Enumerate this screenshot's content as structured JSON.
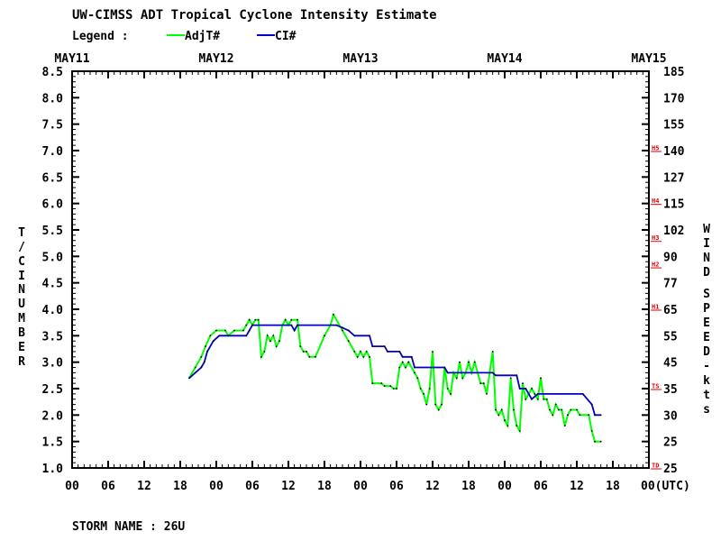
{
  "chart_data": {
    "type": "line",
    "title": "UW-CIMSS ADT Tropical Cyclone Intensity Estimate",
    "legend": {
      "label": "Legend :",
      "entries": [
        {
          "name": "AdjT#",
          "color": "#00ff00"
        },
        {
          "name": "CI#",
          "color": "#0000cc"
        }
      ],
      "placement": "top-left"
    },
    "footer": "STORM NAME : 26U",
    "left_axis": {
      "label_lines": [
        "T/CI",
        "NUMBER"
      ],
      "ticks": [
        "1.0",
        "1.5",
        "2.0",
        "2.5",
        "3.0",
        "3.5",
        "4.0",
        "4.5",
        "5.0",
        "5.5",
        "6.0",
        "6.5",
        "7.0",
        "7.5",
        "8.0",
        "8.5"
      ],
      "range": [
        1.0,
        8.5
      ]
    },
    "right_axis": {
      "label_lines": [
        "WIND",
        "SPEED-kts"
      ],
      "ticks": [
        {
          "t": 1.0,
          "label": "25"
        },
        {
          "t": 1.5,
          "label": "25"
        },
        {
          "t": 2.0,
          "label": "30"
        },
        {
          "t": 2.5,
          "label": "35"
        },
        {
          "t": 3.0,
          "label": "45"
        },
        {
          "t": 3.5,
          "label": "55"
        },
        {
          "t": 4.0,
          "label": "65"
        },
        {
          "t": 4.5,
          "label": "77"
        },
        {
          "t": 5.0,
          "label": "90"
        },
        {
          "t": 5.5,
          "label": "102"
        },
        {
          "t": 6.0,
          "label": "115"
        },
        {
          "t": 6.5,
          "label": "127"
        },
        {
          "t": 7.0,
          "label": "140"
        },
        {
          "t": 7.5,
          "label": "155"
        },
        {
          "t": 8.0,
          "label": "170"
        },
        {
          "t": 8.5,
          "label": "185"
        }
      ],
      "categories": [
        {
          "t": 1.0,
          "label": "TD"
        },
        {
          "t": 2.5,
          "label": "TS"
        },
        {
          "t": 4.0,
          "label": "H1"
        },
        {
          "t": 4.8,
          "label": "H2"
        },
        {
          "t": 5.3,
          "label": "H3"
        },
        {
          "t": 6.0,
          "label": "H4"
        },
        {
          "t": 7.0,
          "label": "H5"
        }
      ]
    },
    "x_axis": {
      "range_hours": [
        0,
        96
      ],
      "date_labels": [
        {
          "h": 0,
          "label": "MAY11"
        },
        {
          "h": 24,
          "label": "MAY12"
        },
        {
          "h": 48,
          "label": "MAY13"
        },
        {
          "h": 72,
          "label": "MAY14"
        },
        {
          "h": 96,
          "label": "MAY15"
        }
      ],
      "hour_labels": [
        {
          "h": 0,
          "label": "00"
        },
        {
          "h": 6,
          "label": "06"
        },
        {
          "h": 12,
          "label": "12"
        },
        {
          "h": 18,
          "label": "18"
        },
        {
          "h": 24,
          "label": "00"
        },
        {
          "h": 30,
          "label": "06"
        },
        {
          "h": 36,
          "label": "12"
        },
        {
          "h": 42,
          "label": "18"
        },
        {
          "h": 48,
          "label": "00"
        },
        {
          "h": 54,
          "label": "06"
        },
        {
          "h": 60,
          "label": "12"
        },
        {
          "h": 66,
          "label": "18"
        },
        {
          "h": 72,
          "label": "00"
        },
        {
          "h": 78,
          "label": "06"
        },
        {
          "h": 84,
          "label": "12"
        },
        {
          "h": 90,
          "label": "18"
        },
        {
          "h": 96,
          "label": "00(UTC)"
        }
      ]
    },
    "series": [
      {
        "name": "AdjT#",
        "color": "#00ff00",
        "points": [
          [
            19.5,
            2.7
          ],
          [
            20.5,
            2.9
          ],
          [
            21.5,
            3.1
          ],
          [
            22.2,
            3.3
          ],
          [
            23,
            3.5
          ],
          [
            24,
            3.6
          ],
          [
            25.5,
            3.6
          ],
          [
            26,
            3.5
          ],
          [
            27,
            3.6
          ],
          [
            28.5,
            3.6
          ],
          [
            29,
            3.7
          ],
          [
            29.5,
            3.8
          ],
          [
            30,
            3.7
          ],
          [
            30.5,
            3.8
          ],
          [
            31,
            3.8
          ],
          [
            31.5,
            3.1
          ],
          [
            32,
            3.2
          ],
          [
            32.5,
            3.5
          ],
          [
            33,
            3.4
          ],
          [
            33.5,
            3.5
          ],
          [
            34,
            3.3
          ],
          [
            34.5,
            3.4
          ],
          [
            35,
            3.7
          ],
          [
            35.5,
            3.8
          ],
          [
            36,
            3.7
          ],
          [
            36.5,
            3.8
          ],
          [
            37.5,
            3.8
          ],
          [
            38,
            3.3
          ],
          [
            38.5,
            3.2
          ],
          [
            39,
            3.2
          ],
          [
            39.5,
            3.1
          ],
          [
            40.5,
            3.1
          ],
          [
            42,
            3.5
          ],
          [
            43,
            3.7
          ],
          [
            43.5,
            3.9
          ],
          [
            45,
            3.6
          ],
          [
            46,
            3.4
          ],
          [
            47,
            3.2
          ],
          [
            47.5,
            3.1
          ],
          [
            48,
            3.2
          ],
          [
            48.5,
            3.1
          ],
          [
            49,
            3.2
          ],
          [
            49.5,
            3.1
          ],
          [
            50,
            2.6
          ],
          [
            51.5,
            2.6
          ],
          [
            52,
            2.55
          ],
          [
            53,
            2.55
          ],
          [
            53.5,
            2.5
          ],
          [
            54,
            2.5
          ],
          [
            54.5,
            2.9
          ],
          [
            55,
            3.0
          ],
          [
            55.5,
            2.9
          ],
          [
            56,
            3.0
          ],
          [
            57,
            2.8
          ],
          [
            57.5,
            2.7
          ],
          [
            58,
            2.5
          ],
          [
            58.5,
            2.4
          ],
          [
            59,
            2.2
          ],
          [
            59.5,
            2.5
          ],
          [
            60,
            3.2
          ],
          [
            60.5,
            2.2
          ],
          [
            61,
            2.1
          ],
          [
            61.5,
            2.2
          ],
          [
            62,
            2.9
          ],
          [
            62.5,
            2.5
          ],
          [
            63,
            2.4
          ],
          [
            63.5,
            2.8
          ],
          [
            64,
            2.7
          ],
          [
            64.5,
            3.0
          ],
          [
            65,
            2.7
          ],
          [
            65.5,
            2.8
          ],
          [
            66,
            3.0
          ],
          [
            66.5,
            2.8
          ],
          [
            67,
            3.0
          ],
          [
            67.5,
            2.8
          ],
          [
            68,
            2.6
          ],
          [
            68.5,
            2.6
          ],
          [
            69,
            2.4
          ],
          [
            69.5,
            2.8
          ],
          [
            70,
            3.2
          ],
          [
            70.5,
            2.1
          ],
          [
            71,
            2.0
          ],
          [
            71.5,
            2.1
          ],
          [
            72,
            1.9
          ],
          [
            72.5,
            1.8
          ],
          [
            73,
            2.7
          ],
          [
            73.5,
            2.1
          ],
          [
            74,
            1.8
          ],
          [
            74.5,
            1.7
          ],
          [
            75,
            2.6
          ],
          [
            75.5,
            2.3
          ],
          [
            76,
            2.4
          ],
          [
            76.5,
            2.5
          ],
          [
            77,
            2.4
          ],
          [
            77.5,
            2.3
          ],
          [
            78,
            2.7
          ],
          [
            78.5,
            2.3
          ],
          [
            79,
            2.3
          ],
          [
            79.5,
            2.1
          ],
          [
            80,
            2.0
          ],
          [
            80.5,
            2.2
          ],
          [
            81,
            2.1
          ],
          [
            81.5,
            2.1
          ],
          [
            82,
            1.8
          ],
          [
            82.5,
            2.0
          ],
          [
            83,
            2.1
          ],
          [
            84,
            2.1
          ],
          [
            84.5,
            2.0
          ],
          [
            86,
            2.0
          ],
          [
            86.5,
            1.7
          ],
          [
            87,
            1.5
          ],
          [
            88,
            1.5
          ]
        ]
      },
      {
        "name": "CI#",
        "color": "#0000cc",
        "points": [
          [
            19.5,
            2.7
          ],
          [
            20.5,
            2.8
          ],
          [
            21.5,
            2.9
          ],
          [
            22,
            3.0
          ],
          [
            22.5,
            3.2
          ],
          [
            23.5,
            3.4
          ],
          [
            24.5,
            3.5
          ],
          [
            29,
            3.5
          ],
          [
            29.5,
            3.6
          ],
          [
            30,
            3.7
          ],
          [
            36.5,
            3.7
          ],
          [
            37,
            3.6
          ],
          [
            37.5,
            3.7
          ],
          [
            44,
            3.7
          ],
          [
            45,
            3.65
          ],
          [
            46,
            3.6
          ],
          [
            47,
            3.5
          ],
          [
            49.5,
            3.5
          ],
          [
            50,
            3.3
          ],
          [
            52,
            3.3
          ],
          [
            52.5,
            3.2
          ],
          [
            54.5,
            3.2
          ],
          [
            55,
            3.1
          ],
          [
            56.5,
            3.1
          ],
          [
            57,
            2.9
          ],
          [
            62,
            2.9
          ],
          [
            62.5,
            2.8
          ],
          [
            70,
            2.8
          ],
          [
            70.5,
            2.75
          ],
          [
            74,
            2.75
          ],
          [
            74.5,
            2.5
          ],
          [
            75.5,
            2.5
          ],
          [
            76.5,
            2.3
          ],
          [
            77.5,
            2.4
          ],
          [
            85,
            2.4
          ],
          [
            86.5,
            2.2
          ],
          [
            87,
            2.0
          ],
          [
            88,
            2.0
          ]
        ]
      }
    ]
  }
}
